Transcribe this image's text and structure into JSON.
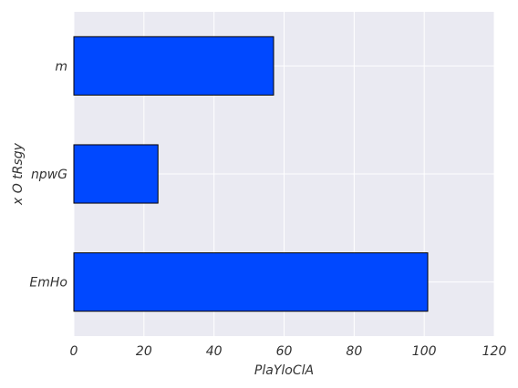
{
  "chart_data": {
    "type": "bar",
    "orientation": "horizontal",
    "title": "",
    "xlabel": "PlaYloClA",
    "ylabel": "x O tRsgy",
    "categories": [
      "EmHo",
      "npwG",
      "m"
    ],
    "values": [
      101,
      24,
      57
    ],
    "xlim": [
      0,
      120
    ],
    "xticks": [
      0,
      20,
      40,
      60,
      80,
      100,
      120
    ],
    "grid": true,
    "legend": "none",
    "colors": {
      "bar": "#0048ff",
      "plot_background": "#eaeaf2",
      "grid": "#ffffff"
    }
  }
}
